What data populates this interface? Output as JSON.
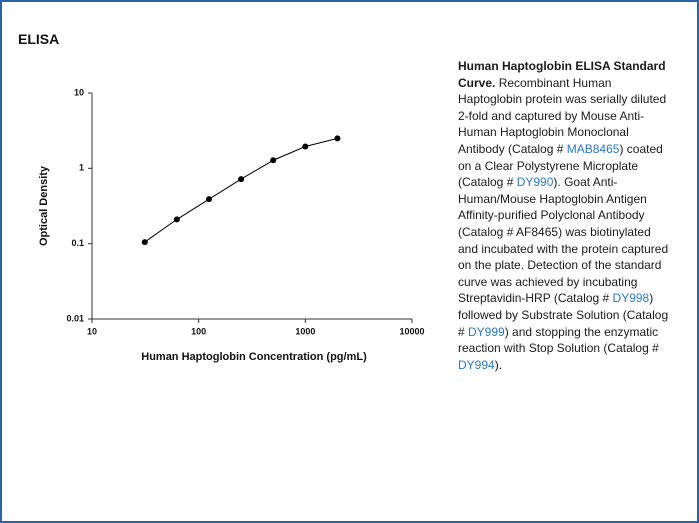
{
  "title": "ELISA",
  "chart_data": {
    "type": "line",
    "log_x": true,
    "log_y": true,
    "x": [
      31.25,
      62.5,
      125,
      250,
      500,
      1000,
      2000
    ],
    "values": [
      0.105,
      0.21,
      0.39,
      0.72,
      1.28,
      1.95,
      2.5
    ],
    "color": "#000000",
    "xlim": [
      10,
      10000
    ],
    "xticks": [
      10,
      100,
      1000,
      10000
    ],
    "ylim": [
      0.01,
      10
    ],
    "yticks": [
      0.01,
      0.1,
      1,
      10
    ],
    "xlabel": "Human Haptoglobin Concentration (pg/mL)",
    "ylabel": "Optical Density"
  },
  "caption": [
    {
      "text": "Human Haptoglobin ELISA Standard Curve.",
      "style": "bold"
    },
    {
      "text": " Recombinant Human Haptoglobin protein was serially diluted 2-fold and captured by Mouse Anti-Human Haptoglobin Monoclonal Antibody (Catalog # ",
      "style": "plain"
    },
    {
      "text": "MAB8465",
      "style": "link"
    },
    {
      "text": ") coated on a Clear Polystyrene Microplate (Catalog # ",
      "style": "plain"
    },
    {
      "text": "DY990",
      "style": "link"
    },
    {
      "text": ").   Goat Anti-Human/Mouse Haptoglobin Antigen Affinity-purified Polyclonal Antibody (Catalog # AF8465) was biotinylated and incubated with the protein captured on the plate. Detection of the standard curve was achieved by incubating Streptavidin-HRP (Catalog # ",
      "style": "plain"
    },
    {
      "text": "DY998",
      "style": "link"
    },
    {
      "text": ") followed by Substrate Solution (Catalog # ",
      "style": "plain"
    },
    {
      "text": "DY999",
      "style": "link"
    },
    {
      "text": ") and stopping the enzymatic reaction with Stop Solution (Catalog # ",
      "style": "plain"
    },
    {
      "text": "DY994",
      "style": "link"
    },
    {
      "text": ").",
      "style": "plain"
    }
  ]
}
